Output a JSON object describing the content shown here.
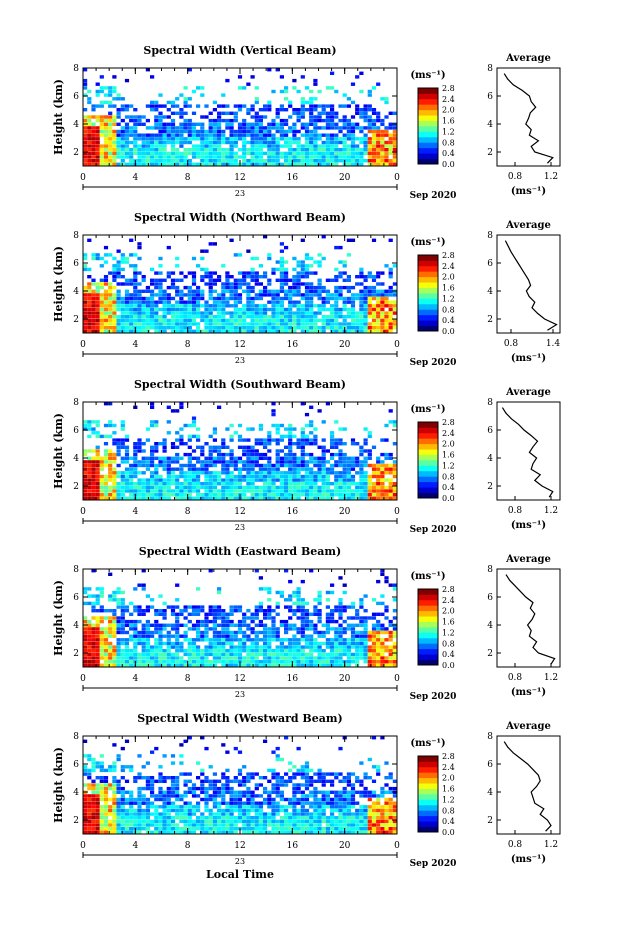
{
  "figure": {
    "x_axis_label": "Local Time",
    "date_label": "Sep 2020",
    "day_label": "23"
  },
  "chart_data": [
    {
      "type": "heatmap",
      "title": "Spectral Width (Vertical Beam)",
      "ylabel": "Height (km)",
      "x_ticks": [
        "0",
        "4",
        "8",
        "12",
        "16",
        "20",
        "0"
      ],
      "xlim": [
        0,
        24
      ],
      "y_ticks": [
        "2",
        "4",
        "6",
        "8"
      ],
      "ylim": [
        1,
        8
      ],
      "colorbar": {
        "unit": "(ms⁻¹)",
        "ticks": [
          "0.0",
          "0.4",
          "0.8",
          "1.2",
          "1.6",
          "2.0",
          "2.4",
          "2.8"
        ]
      },
      "profile": {
        "title": "Average",
        "xlabel": "(ms⁻¹)",
        "x_ticks": [
          "0.8",
          "1.2"
        ],
        "xlim": [
          0.6,
          1.3
        ],
        "y_ticks": [
          "2",
          "4",
          "6",
          "8"
        ],
        "ylim": [
          1,
          8
        ],
        "heights": [
          1.2,
          1.6,
          2.0,
          2.4,
          2.8,
          3.2,
          3.6,
          4.0,
          4.4,
          4.8,
          5.2,
          5.6,
          6.0,
          6.4,
          6.8,
          7.2,
          7.6
        ],
        "values": [
          1.16,
          1.22,
          1.02,
          0.98,
          1.06,
          0.96,
          0.98,
          0.92,
          0.95,
          0.97,
          1.03,
          0.98,
          0.96,
          0.88,
          0.78,
          0.72,
          0.68
        ]
      }
    },
    {
      "type": "heatmap",
      "title": "Spectral Width (Northward Beam)",
      "ylabel": "Height (km)",
      "x_ticks": [
        "0",
        "4",
        "8",
        "12",
        "16",
        "20",
        "0"
      ],
      "xlim": [
        0,
        24
      ],
      "y_ticks": [
        "2",
        "4",
        "6",
        "8"
      ],
      "ylim": [
        1,
        8
      ],
      "colorbar": {
        "unit": "(ms⁻¹)",
        "ticks": [
          "0.0",
          "0.4",
          "0.8",
          "1.2",
          "1.6",
          "2.0",
          "2.4",
          "2.8"
        ]
      },
      "profile": {
        "title": "Average",
        "xlabel": "(ms⁻¹)",
        "x_ticks": [
          "0.8",
          "1.4"
        ],
        "xlim": [
          0.6,
          1.5
        ],
        "y_ticks": [
          "2",
          "4",
          "6",
          "8"
        ],
        "ylim": [
          1,
          8
        ],
        "heights": [
          1.2,
          1.6,
          2.0,
          2.4,
          2.8,
          3.2,
          3.6,
          4.0,
          4.4,
          4.8,
          5.2,
          5.6,
          6.0,
          6.4,
          6.8,
          7.2,
          7.6
        ],
        "values": [
          1.32,
          1.45,
          1.28,
          1.18,
          1.1,
          1.14,
          1.06,
          1.02,
          1.08,
          1.05,
          1.0,
          0.95,
          0.9,
          0.85,
          0.8,
          0.76,
          0.72
        ]
      }
    },
    {
      "type": "heatmap",
      "title": "Spectral Width (Southward Beam)",
      "ylabel": "Height (km)",
      "x_ticks": [
        "0",
        "4",
        "8",
        "12",
        "16",
        "20",
        "0"
      ],
      "xlim": [
        0,
        24
      ],
      "y_ticks": [
        "2",
        "4",
        "6",
        "8"
      ],
      "ylim": [
        1,
        8
      ],
      "colorbar": {
        "unit": "(ms⁻¹)",
        "ticks": [
          "0.0",
          "0.4",
          "0.8",
          "1.2",
          "1.6",
          "2.0",
          "2.4",
          "2.8"
        ]
      },
      "profile": {
        "title": "Average",
        "xlabel": "(ms⁻¹)",
        "x_ticks": [
          "0.8",
          "1.2"
        ],
        "xlim": [
          0.6,
          1.3
        ],
        "y_ticks": [
          "2",
          "4",
          "6",
          "8"
        ],
        "ylim": [
          1,
          8
        ],
        "heights": [
          1.2,
          1.6,
          2.0,
          2.4,
          2.8,
          3.2,
          3.6,
          4.0,
          4.4,
          4.8,
          5.2,
          5.6,
          6.0,
          6.4,
          6.8,
          7.2,
          7.6
        ],
        "values": [
          1.18,
          1.22,
          1.1,
          1.02,
          1.08,
          0.98,
          1.0,
          1.04,
          0.96,
          1.0,
          1.05,
          0.98,
          0.9,
          0.84,
          0.76,
          0.7,
          0.66
        ]
      }
    },
    {
      "type": "heatmap",
      "title": "Spectral Width (Eastward Beam)",
      "ylabel": "Height (km)",
      "x_ticks": [
        "0",
        "4",
        "8",
        "12",
        "16",
        "20",
        "0"
      ],
      "xlim": [
        0,
        24
      ],
      "y_ticks": [
        "2",
        "4",
        "6",
        "8"
      ],
      "ylim": [
        1,
        8
      ],
      "colorbar": {
        "unit": "(ms⁻¹)",
        "ticks": [
          "0.0",
          "0.4",
          "0.8",
          "1.2",
          "1.6",
          "2.0",
          "2.4",
          "2.8"
        ]
      },
      "profile": {
        "title": "Average",
        "xlabel": "(ms⁻¹)",
        "x_ticks": [
          "0.8",
          "1.2"
        ],
        "xlim": [
          0.6,
          1.3
        ],
        "y_ticks": [
          "2",
          "4",
          "6",
          "8"
        ],
        "ylim": [
          1,
          8
        ],
        "heights": [
          1.2,
          1.6,
          2.0,
          2.4,
          2.8,
          3.2,
          3.6,
          4.0,
          4.4,
          4.8,
          5.2,
          5.6,
          6.0,
          6.4,
          6.8,
          7.2,
          7.6
        ],
        "values": [
          1.2,
          1.24,
          1.06,
          1.0,
          1.04,
          0.96,
          0.98,
          0.94,
          0.99,
          1.02,
          0.97,
          1.0,
          0.92,
          0.86,
          0.8,
          0.74,
          0.7
        ]
      }
    },
    {
      "type": "heatmap",
      "title": "Spectral Width (Westward Beam)",
      "ylabel": "Height (km)",
      "x_ticks": [
        "0",
        "4",
        "8",
        "12",
        "16",
        "20",
        "0"
      ],
      "xlim": [
        0,
        24
      ],
      "y_ticks": [
        "2",
        "4",
        "6",
        "8"
      ],
      "ylim": [
        1,
        8
      ],
      "colorbar": {
        "unit": "(ms⁻¹)",
        "ticks": [
          "0.0",
          "0.4",
          "0.8",
          "1.2",
          "1.6",
          "2.0",
          "2.4",
          "2.8"
        ]
      },
      "profile": {
        "title": "Average",
        "xlabel": "(ms⁻¹)",
        "x_ticks": [
          "0.8",
          "1.2"
        ],
        "xlim": [
          0.6,
          1.3
        ],
        "y_ticks": [
          "2",
          "4",
          "6",
          "8"
        ],
        "ylim": [
          1,
          8
        ],
        "heights": [
          1.2,
          1.6,
          2.0,
          2.4,
          2.8,
          3.2,
          3.6,
          4.0,
          4.4,
          4.8,
          5.2,
          5.6,
          6.0,
          6.4,
          6.8,
          7.2,
          7.6
        ],
        "values": [
          1.14,
          1.2,
          1.16,
          1.08,
          1.12,
          1.02,
          1.0,
          0.98,
          1.04,
          1.08,
          1.06,
          1.0,
          0.94,
          0.86,
          0.78,
          0.72,
          0.68
        ]
      }
    }
  ]
}
